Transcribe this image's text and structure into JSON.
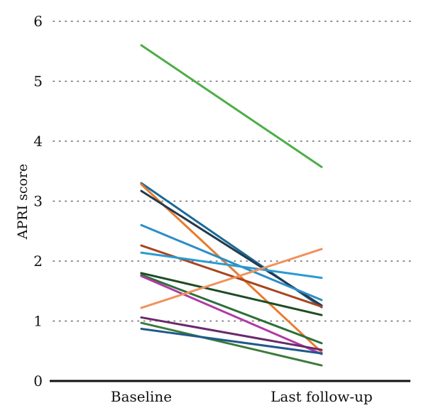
{
  "chart_data": {
    "type": "line",
    "title": "",
    "xlabel": "",
    "ylabel": "APRI score",
    "categories": [
      "Baseline",
      "Last follow-up"
    ],
    "ylim": [
      0,
      6
    ],
    "yticks": [
      "0",
      "1",
      "2",
      "3",
      "4",
      "5",
      "6"
    ],
    "grid": "horizontal dotted",
    "legend": "none",
    "series": [
      {
        "values": [
          5.6,
          3.57
        ],
        "color": "#4caf45"
      },
      {
        "values": [
          3.3,
          1.23
        ],
        "color": "#1a6b96"
      },
      {
        "values": [
          3.28,
          0.48
        ],
        "color": "#e87b2c"
      },
      {
        "values": [
          3.17,
          1.26
        ],
        "color": "#223a4e"
      },
      {
        "values": [
          2.6,
          1.35
        ],
        "color": "#2a8ec6"
      },
      {
        "values": [
          2.26,
          1.24
        ],
        "color": "#a8451f"
      },
      {
        "values": [
          2.14,
          1.72
        ],
        "color": "#2a9ad2"
      },
      {
        "values": [
          1.8,
          1.1
        ],
        "color": "#1d4d23"
      },
      {
        "values": [
          1.77,
          0.63
        ],
        "color": "#2c6f3a"
      },
      {
        "values": [
          1.75,
          0.45
        ],
        "color": "#b03aa6"
      },
      {
        "values": [
          1.22,
          2.2
        ],
        "color": "#f0925c"
      },
      {
        "values": [
          1.06,
          0.52
        ],
        "color": "#6a2a6a"
      },
      {
        "values": [
          0.97,
          0.26
        ],
        "color": "#3e7a3a"
      },
      {
        "values": [
          0.87,
          0.46
        ],
        "color": "#1d5a8c"
      }
    ]
  }
}
